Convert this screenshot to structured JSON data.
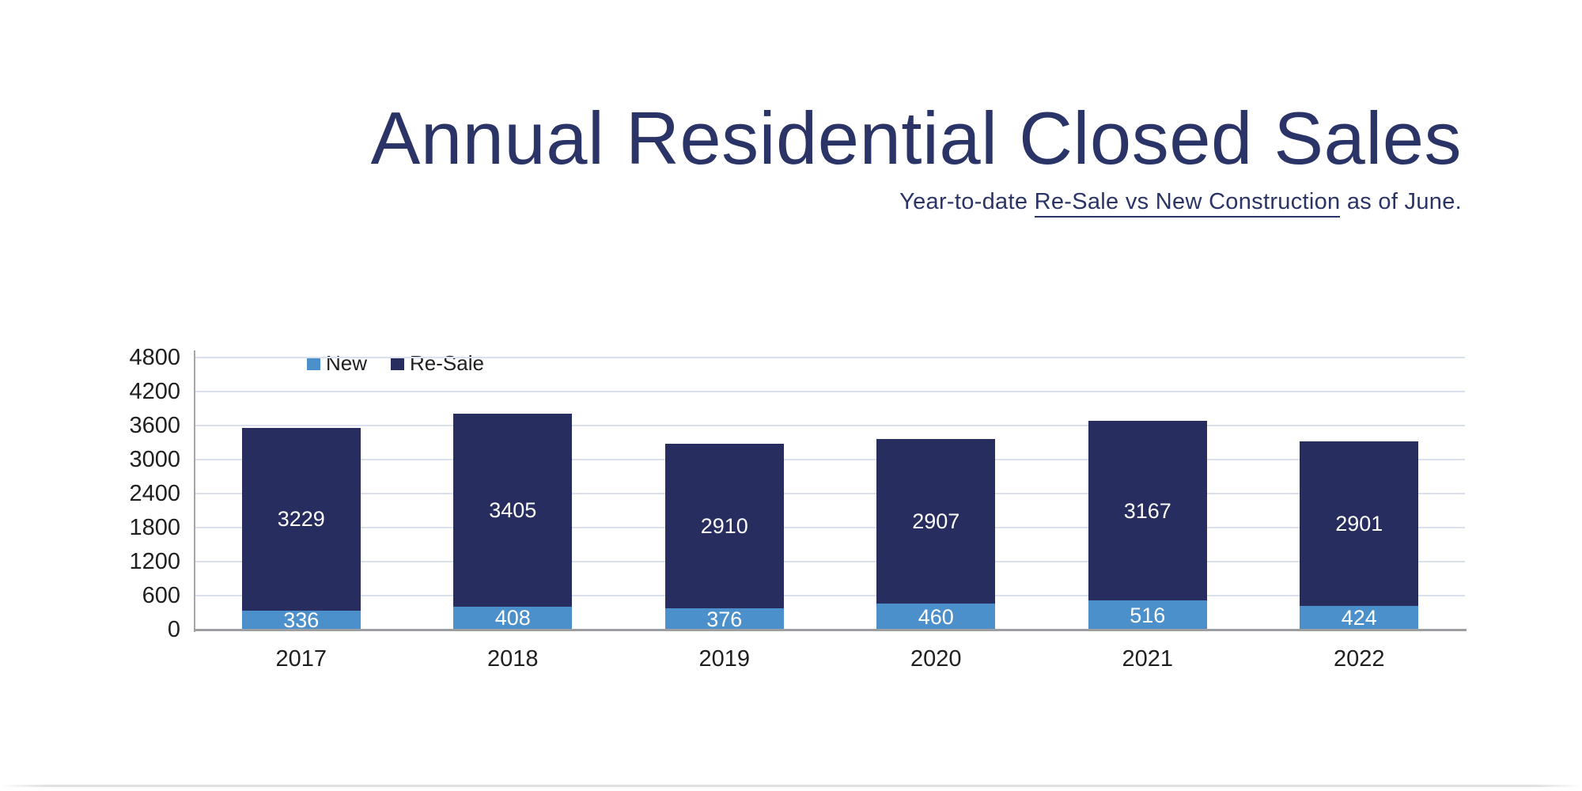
{
  "page": {
    "background": "#ffffff",
    "colors": {
      "title": "#2b3467",
      "text": "#1f1f1f",
      "gridline": "#dae1ec",
      "axis": "#a5a5a5",
      "axis_bottom": "#9c9ea1",
      "bar_value_label": "#ffffff",
      "new": "#4b90cb",
      "resale": "#272e5f"
    }
  },
  "header": {
    "title": "Annual Residential Closed Sales",
    "subtitle_prefix": "Year-to-date ",
    "subtitle_underlined": "Re-Sale vs New Construction",
    "subtitle_suffix": " as of June."
  },
  "chart_data": {
    "type": "bar",
    "stacked": true,
    "title": "Annual Residential Closed Sales",
    "subtitle": "Year-to-date Re-Sale vs New Construction as of June.",
    "categories": [
      "2017",
      "2018",
      "2019",
      "2020",
      "2021",
      "2022"
    ],
    "series": [
      {
        "name": "New",
        "color": "#4b90cb",
        "values": [
          336,
          408,
          376,
          460,
          516,
          424
        ]
      },
      {
        "name": "Re-Sale",
        "color": "#272e5f",
        "values": [
          3229,
          3405,
          2910,
          2907,
          3167,
          2901
        ]
      }
    ],
    "xlabel": "",
    "ylabel": "",
    "ylim": [
      0,
      4800
    ],
    "yticks": [
      0,
      600,
      1200,
      1800,
      2400,
      3000,
      3600,
      4200,
      4800
    ],
    "grid": true,
    "legend_position": "top-left-inside",
    "value_labels": "inside-white"
  }
}
